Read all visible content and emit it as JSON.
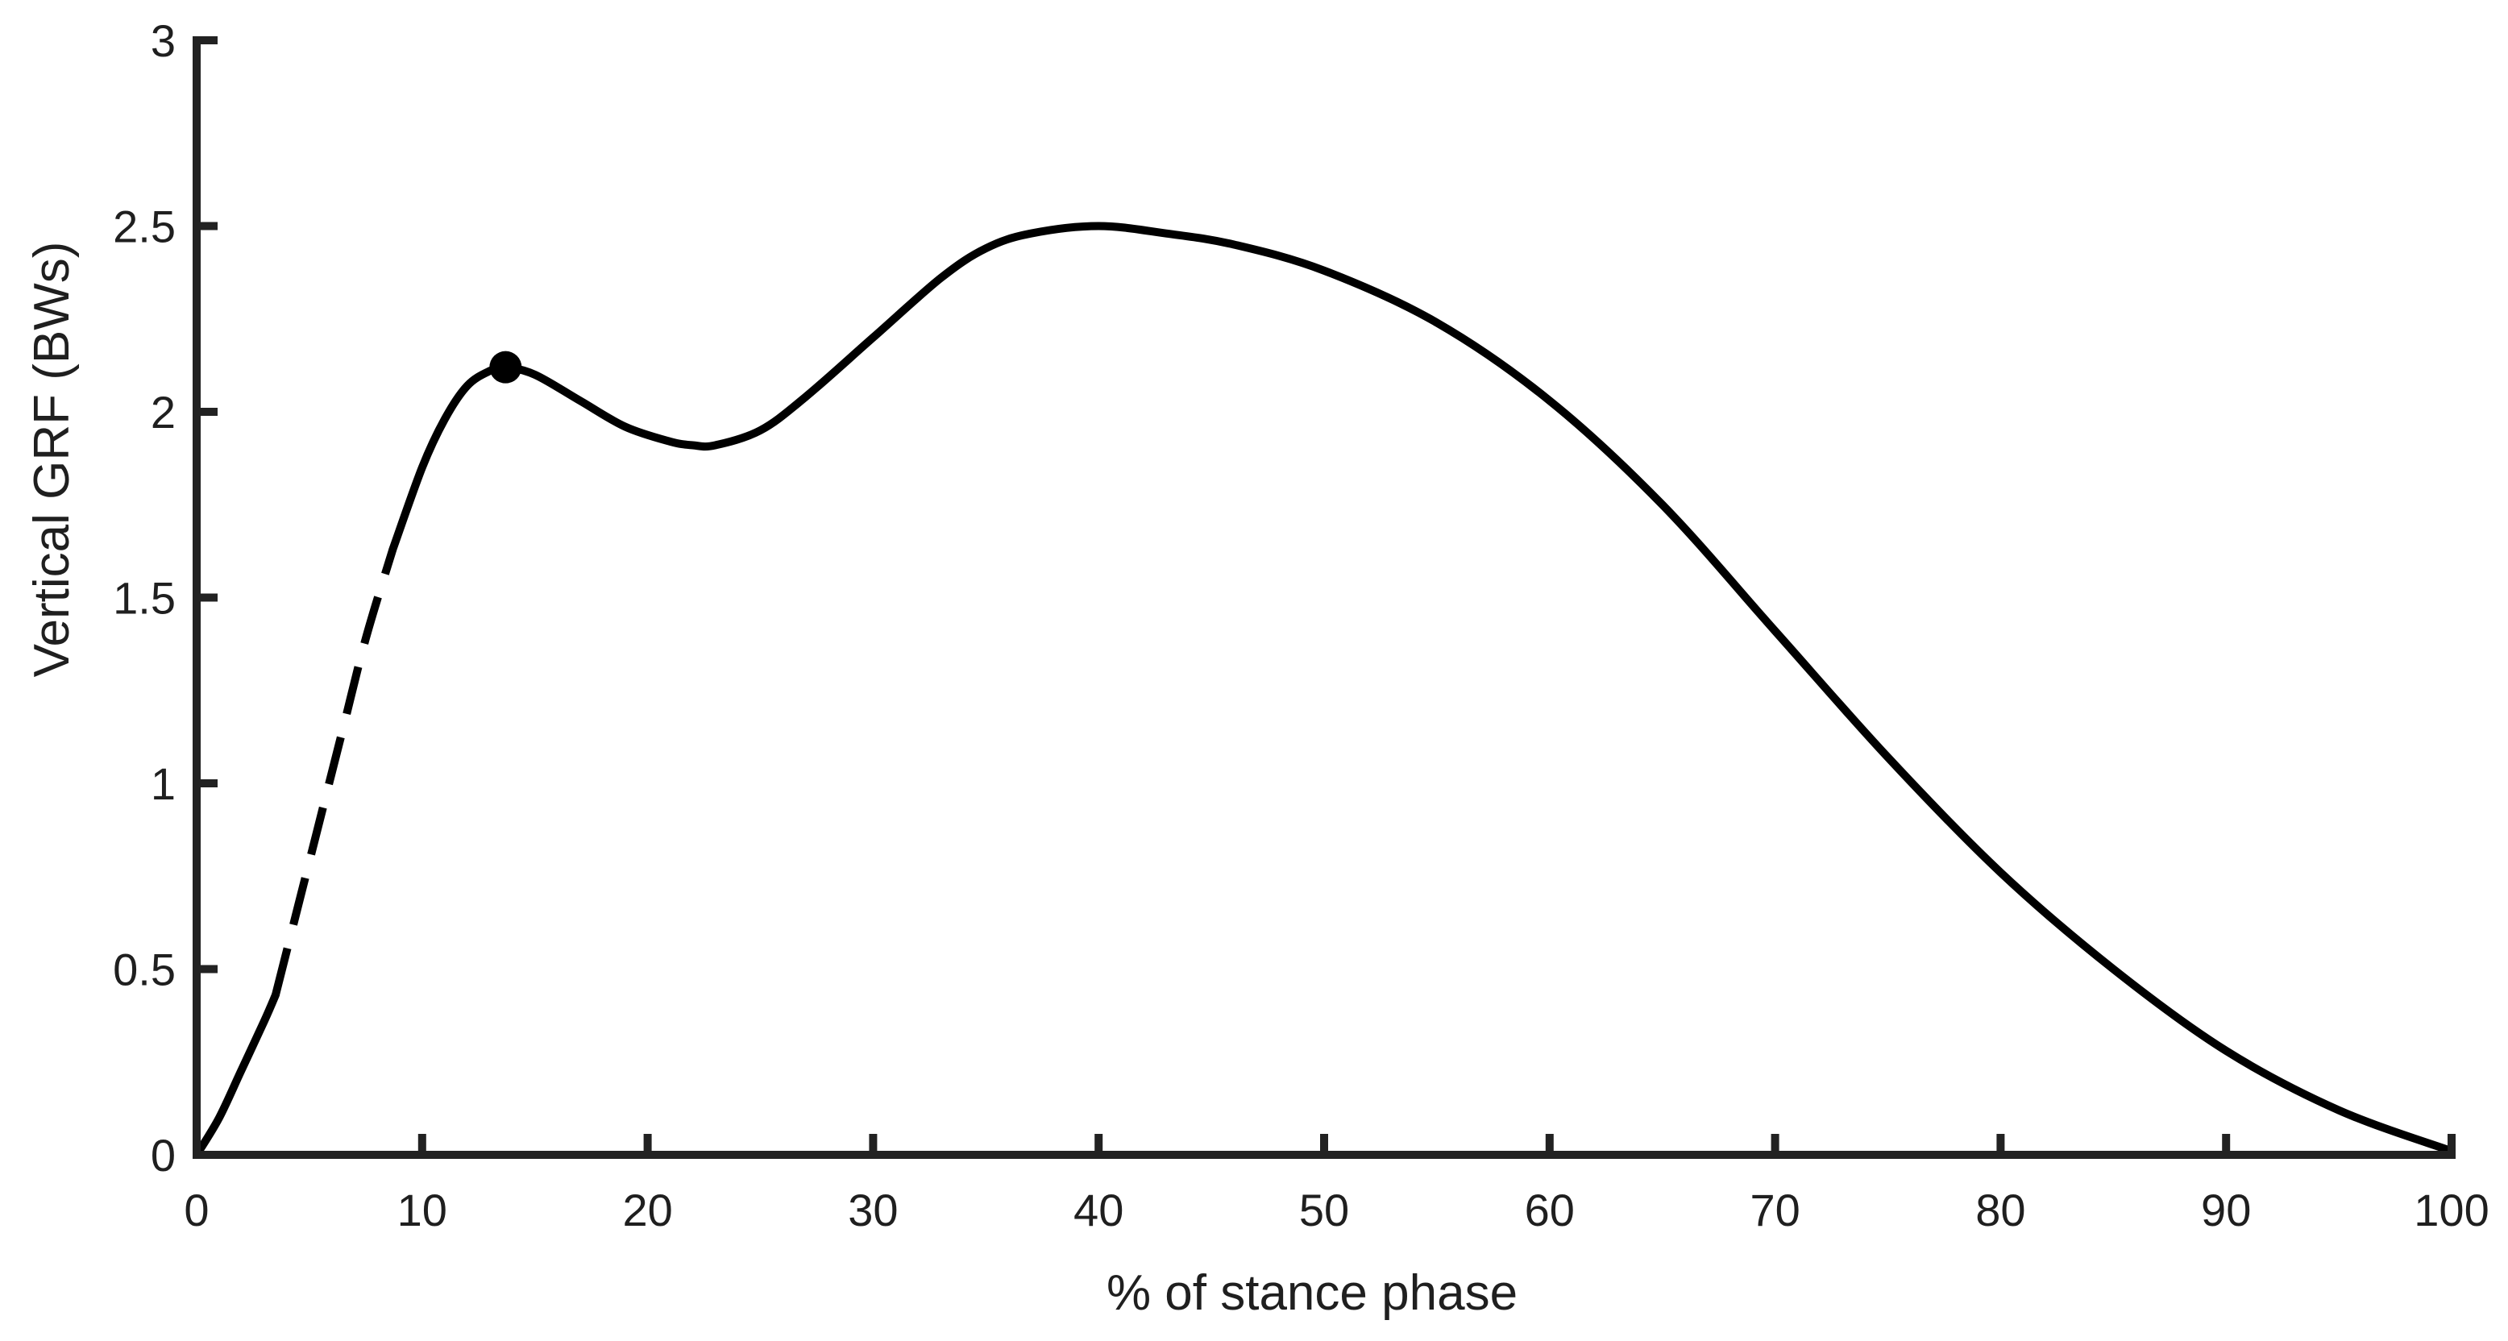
{
  "chart_data": {
    "type": "line",
    "title": "",
    "xlabel": "% of stance phase",
    "ylabel": "Vertical GRF (BWs)",
    "xlim": [
      0,
      100
    ],
    "ylim": [
      0,
      3
    ],
    "xticks": [
      0,
      10,
      20,
      30,
      40,
      50,
      60,
      70,
      80,
      90,
      100
    ],
    "xtick_labels": [
      "0",
      "10",
      "20",
      "30",
      "40",
      "50",
      "60",
      "70",
      "80",
      "90",
      "100"
    ],
    "yticks": [
      0,
      0.5,
      1,
      1.5,
      2,
      2.5,
      3
    ],
    "ytick_labels": [
      "0",
      "0.5",
      "1",
      "1.5",
      "2",
      "2.5",
      "3"
    ],
    "grid": false,
    "line_color": "#000000",
    "series": [
      {
        "style": "solid",
        "x": [
          0,
          1,
          2,
          3,
          3.5
        ],
        "y": [
          0,
          0.1,
          0.23,
          0.36,
          0.43
        ]
      },
      {
        "style": "dashed",
        "x": [
          3.5,
          4.5,
          5.5,
          6.5,
          7.5,
          8.7
        ],
        "y": [
          0.43,
          0.67,
          0.91,
          1.15,
          1.39,
          1.63
        ]
      },
      {
        "style": "solid",
        "x": [
          8.7,
          10,
          11,
          12,
          13,
          13.7,
          15,
          17,
          19,
          21,
          22,
          23,
          25,
          27,
          30,
          33,
          35,
          37,
          40,
          43,
          46,
          50,
          55,
          60,
          65,
          70,
          75,
          80,
          85,
          90,
          95,
          100
        ],
        "y": [
          1.63,
          1.85,
          1.98,
          2.07,
          2.11,
          2.12,
          2.1,
          2.03,
          1.96,
          1.92,
          1.91,
          1.91,
          1.95,
          2.04,
          2.2,
          2.36,
          2.44,
          2.48,
          2.5,
          2.48,
          2.45,
          2.38,
          2.24,
          2.03,
          1.75,
          1.41,
          1.07,
          0.76,
          0.5,
          0.28,
          0.12,
          0.01
        ]
      }
    ],
    "markers": [
      {
        "x": 13.7,
        "y": 2.12
      }
    ]
  }
}
